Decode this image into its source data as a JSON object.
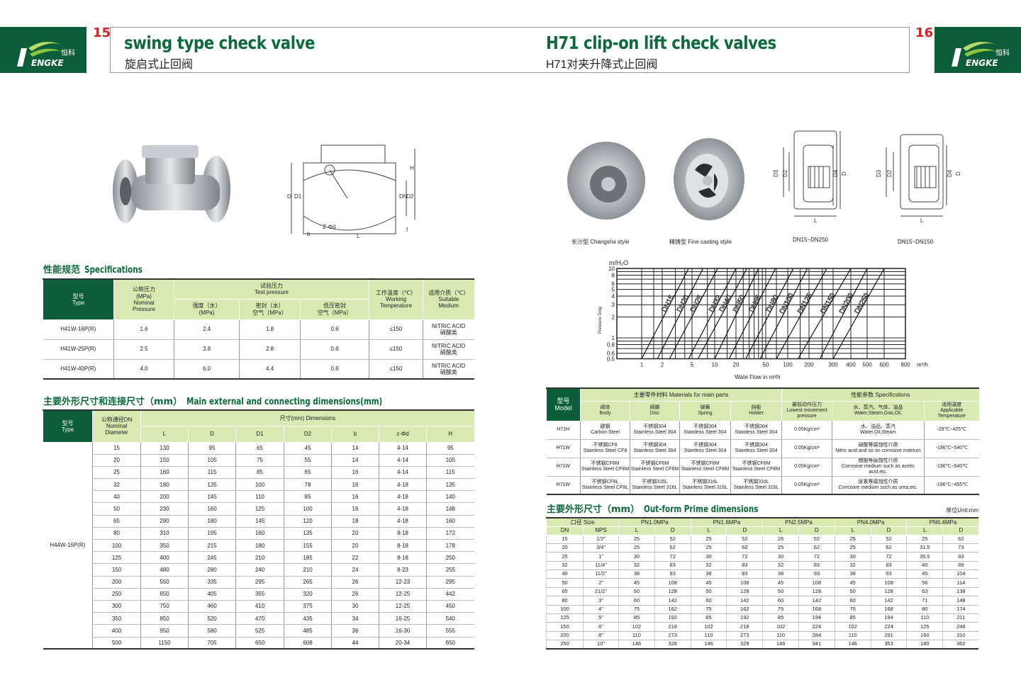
{
  "left_page": {
    "page_number": "15",
    "logo_text": "HENGKE 恒科",
    "title_en": "swing type check valve",
    "title_cn": "旋启式止回阀",
    "spec_heading_cn": "性能规范",
    "spec_heading_en": "Specifications",
    "spec_table": {
      "headers": {
        "type": "型号\nType",
        "nominal": "公称压力\n(MPa)\nNominal\nPressure",
        "test": "试验压力\nTest pressure",
        "strength": "强度（水）\n(MPa)",
        "seal": "密封（水）\n空气（MPa）",
        "low": "低压密封\n空气（MPa）",
        "temp": "工作温度（℃）\nWorking\nTemperature",
        "medium": "适用介质（℃）\nSuitable\nMedium"
      },
      "rows": [
        [
          "H41W-16P(R)",
          "1.6",
          "2.4",
          "1.8",
          "0.6",
          "≤150",
          "NITRIC ACID\n硝酸类"
        ],
        [
          "H41W-25P(R)",
          "2.5",
          "3.8",
          "2.8",
          "0.6",
          "≤150",
          "NITRIC ACID\n硝酸类"
        ],
        [
          "H41W-40P(R)",
          "4.0",
          "6.0",
          "4.4",
          "0.6",
          "≤150",
          "NITRIC ACID\n硝酸类"
        ]
      ]
    },
    "dim_heading_cn": "主要外形尺寸和连接尺寸（mm）",
    "dim_heading_en": "Main external and connecting dimensions(mm)",
    "dim_table": {
      "headers": {
        "type": "型号\nType",
        "dn": "公称通径DN\nNominal\nDiameter",
        "dims": "尺寸(mm) Dimensions",
        "cols": [
          "L",
          "D",
          "D1",
          "D2",
          "b",
          "z-Φd",
          "H"
        ]
      },
      "model": "H44W-16P(R)",
      "rows": [
        [
          "15",
          "130",
          "95",
          "65",
          "45",
          "14",
          "4-14",
          "95"
        ],
        [
          "20",
          "150",
          "105",
          "75",
          "55",
          "14",
          "4-14",
          "105"
        ],
        [
          "25",
          "160",
          "115",
          "85",
          "65",
          "16",
          "4-14",
          "115"
        ],
        [
          "32",
          "180",
          "135",
          "100",
          "78",
          "16",
          "4-18",
          "135"
        ],
        [
          "40",
          "200",
          "145",
          "110",
          "85",
          "16",
          "4-18",
          "140"
        ],
        [
          "50",
          "230",
          "160",
          "125",
          "100",
          "16",
          "4-18",
          "148"
        ],
        [
          "65",
          "290",
          "180",
          "145",
          "120",
          "18",
          "4-18",
          "160"
        ],
        [
          "80",
          "310",
          "195",
          "160",
          "135",
          "20",
          "8-18",
          "172"
        ],
        [
          "100",
          "350",
          "215",
          "180",
          "155",
          "20",
          "8-18",
          "178"
        ],
        [
          "125",
          "400",
          "245",
          "210",
          "185",
          "22",
          "8-18",
          "250"
        ],
        [
          "150",
          "480",
          "280",
          "240",
          "210",
          "24",
          "8-23",
          "255"
        ],
        [
          "200",
          "550",
          "335",
          "295",
          "265",
          "26",
          "12-23",
          "295"
        ],
        [
          "250",
          "650",
          "405",
          "355",
          "320",
          "26",
          "12-25",
          "442"
        ],
        [
          "300",
          "750",
          "460",
          "410",
          "375",
          "30",
          "12-25",
          "450"
        ],
        [
          "350",
          "850",
          "520",
          "470",
          "435",
          "34",
          "16-25",
          "540"
        ],
        [
          "400",
          "950",
          "580",
          "525",
          "485",
          "36",
          "16-30",
          "555"
        ],
        [
          "500",
          "1150",
          "705",
          "650",
          "608",
          "44",
          "20-34",
          "650"
        ]
      ]
    },
    "drawing_labels": [
      "D",
      "D1",
      "DN",
      "D2",
      "H",
      "Z-Φd",
      "L",
      "b",
      "f"
    ]
  },
  "right_page": {
    "page_number": "16",
    "logo_text": "HENGKE 恒科",
    "title_en": "H71 clip-on lift check valves",
    "title_cn": "H71对夹升降式止回阀",
    "captions": [
      "长沙型 Changsha style",
      "精铸型 Fine casting style",
      "DN15~DN250",
      "DN15~DN150"
    ],
    "drawing_labels": [
      "D3",
      "D2",
      "D4",
      "D",
      "L"
    ],
    "chart_data": {
      "type": "line",
      "xlabel": "Wate Flow in m³/h",
      "ylabel": "Pressure Drop",
      "y_unit": "m/H₂O",
      "x_unit": "m³/h",
      "x_scale": "log",
      "y_scale": "log",
      "xlim": [
        0.75,
        800
      ],
      "ylim": [
        0.5,
        10
      ],
      "grid": true,
      "x_ticks": [
        "1",
        "2",
        "5",
        "10",
        "20",
        "50",
        "100",
        "200",
        "300",
        "400",
        "500",
        "600",
        "800"
      ],
      "y_ticks": [
        "0.5",
        "0.6",
        "0.8",
        "1",
        "2",
        "3",
        "4",
        "5",
        "6",
        "8",
        "10"
      ],
      "series": [
        {
          "name": "DN15",
          "x": [
            1,
            4.5
          ],
          "y": [
            0.5,
            10
          ]
        },
        {
          "name": "DN20",
          "x": [
            1.7,
            7
          ],
          "y": [
            0.5,
            10
          ]
        },
        {
          "name": "DN25",
          "x": [
            2.5,
            11
          ],
          "y": [
            0.5,
            10
          ]
        },
        {
          "name": "DN32",
          "x": [
            4.5,
            20
          ],
          "y": [
            0.5,
            10
          ]
        },
        {
          "name": "DN40",
          "x": [
            6,
            28
          ],
          "y": [
            0.5,
            10
          ]
        },
        {
          "name": "DN50",
          "x": [
            10,
            40
          ],
          "y": [
            0.5,
            10
          ]
        },
        {
          "name": "DN65",
          "x": [
            16,
            68
          ],
          "y": [
            0.5,
            10
          ]
        },
        {
          "name": "DN80",
          "x": [
            27,
            120
          ],
          "y": [
            0.5,
            10
          ]
        },
        {
          "name": "DN100",
          "x": [
            42,
            190
          ],
          "y": [
            0.5,
            10
          ]
        },
        {
          "name": "DN125",
          "x": [
            70,
            270
          ],
          "y": [
            0.5,
            10
          ]
        },
        {
          "name": "DN150",
          "x": [
            140,
            400
          ],
          "y": [
            0.5,
            10
          ]
        },
        {
          "name": "DN200",
          "x": [
            240,
            500
          ],
          "y": [
            0.5,
            10
          ]
        },
        {
          "name": "DN250",
          "x": [
            300,
            600
          ],
          "y": [
            0.5,
            10
          ]
        }
      ]
    },
    "mat_table": {
      "headers": {
        "model": "型号\nModel",
        "materials": "主要零件材料 Materials for main parts",
        "specs": "性能参数 Specificstions",
        "cols": [
          "阀体\nBody",
          "阀瓣\nDisc",
          "弹簧\nSpring",
          "挡板\nHolder",
          "最低动作压力\nLowest movement\npressure",
          "水、蒸汽、气体、油品\nWater,Steam,Gas,Oil,",
          "适用温度\nApplicable\nTemperature"
        ]
      },
      "rows": [
        [
          "H71H",
          "碳钢\nCarbon Steel",
          "不锈钢304\nStainless Steel 304",
          "不锈钢304\nStainless Steel 304",
          "不锈钢304\nStainless Steel 304",
          "0.05Kg/cm²",
          "水、油品、蒸汽\nWater,Oil,Steam",
          "-29℃~425℃"
        ],
        [
          "H71W",
          "不锈钢CF8\nStainless Steel CF8",
          "不锈钢304\nStainless Steel 304",
          "不锈钢304\nStainless Steel 304",
          "不锈钢304\nStainless Steel 304",
          "0.05Kg/cm²",
          "硝酸等腐蚀性介质\nNitric acid and so on corrosive mdeium",
          "-196℃~540℃"
        ],
        [
          "H71W",
          "不锈钢CF8M\nStainless Steel CF8M",
          "不锈钢CF8M\nStainless Steel CF8M",
          "不锈钢CF8M\nStainless Steel CF8M",
          "不锈钢CF8M\nStainless Steel CF8M",
          "0.05Kg/cm²",
          "醋酸等腐蚀性介质\nCorrosive medium such as acetic acid,etc.",
          "-196℃~540℃"
        ],
        [
          "H71W",
          "不锈钢CF8L\nStainless Steel CF8L",
          "不锈钢316L\nStainless Steel 316L",
          "不锈钢316L\nStainless Steel 316L",
          "不锈钢316L\nStainless Steel 316L",
          "0.05Kg/cm²",
          "尿素等腐蚀性介质\nCorrosive medium such as urea,etc.",
          "-196℃~455℃"
        ]
      ]
    },
    "out_heading_cn": "主要外形尺寸（mm）",
    "out_heading_en": "Out-form Prime dimensions",
    "unit_label": "单位Unit:mm",
    "out_table": {
      "size_header": "口径 Size",
      "pn_headers": [
        "PN1.0MPa",
        "PN1.6MPa",
        "PN2.5MPa",
        "PN4.0MPa",
        "PN6.4MPa"
      ],
      "sub_headers": [
        "DN",
        "NPS",
        "L",
        "D",
        "L",
        "D",
        "L",
        "D",
        "L",
        "D",
        "L",
        "D"
      ],
      "rows": [
        [
          "15",
          "1/2\"",
          "25",
          "52",
          "25",
          "52",
          "25",
          "52",
          "25",
          "52",
          "25",
          "62"
        ],
        [
          "20",
          "3/4\"",
          "25",
          "62",
          "25",
          "62",
          "25",
          "62",
          "25",
          "62",
          "31.5",
          "73"
        ],
        [
          "25",
          "1\"",
          "30",
          "72",
          "30",
          "72",
          "30",
          "72",
          "30",
          "72",
          "35.5",
          "83"
        ],
        [
          "32",
          "11/4\"",
          "32",
          "83",
          "32",
          "83",
          "32",
          "83",
          "32",
          "83",
          "40",
          "89"
        ],
        [
          "40",
          "11/2\"",
          "38",
          "93",
          "38",
          "93",
          "38",
          "93",
          "38",
          "93",
          "45",
          "104"
        ],
        [
          "50",
          "2\"",
          "45",
          "108",
          "45",
          "108",
          "45",
          "108",
          "45",
          "108",
          "56",
          "114"
        ],
        [
          "65",
          "21/2\"",
          "50",
          "128",
          "50",
          "128",
          "50",
          "128",
          "50",
          "128",
          "63",
          "138"
        ],
        [
          "80",
          "3\"",
          "60",
          "142",
          "60",
          "142",
          "60",
          "142",
          "60",
          "142",
          "71",
          "148"
        ],
        [
          "100",
          "4\"",
          "75",
          "162",
          "75",
          "162",
          "75",
          "168",
          "75",
          "168",
          "80",
          "174"
        ],
        [
          "125",
          "5\"",
          "85",
          "192",
          "85",
          "192",
          "85",
          "194",
          "85",
          "194",
          "110",
          "211"
        ],
        [
          "150",
          "6\"",
          "102",
          "218",
          "102",
          "218",
          "102",
          "224",
          "102",
          "224",
          "125",
          "248"
        ],
        [
          "200",
          "8\"",
          "110",
          "273",
          "110",
          "273",
          "110",
          "284",
          "110",
          "291",
          "160",
          "310"
        ],
        [
          "250",
          "10\"",
          "146",
          "328",
          "146",
          "329",
          "146",
          "341",
          "146",
          "353",
          "180",
          "362"
        ]
      ]
    }
  },
  "colors": {
    "brand_green": "#0b5e39",
    "header_green": "#d8eab2",
    "page_number_red": "#d62020",
    "heading_green": "#0c6a3c"
  }
}
